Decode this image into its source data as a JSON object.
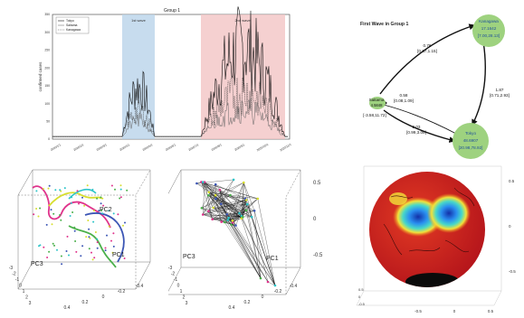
{
  "timeseries": {
    "title": "Group 1",
    "ylabel": "confirmed cases",
    "legend": [
      "Tokyo",
      "Saitama",
      "Kanagawa"
    ],
    "bands": [
      {
        "label": "1st wave",
        "color": "#b9d3ea"
      },
      {
        "label": "2nd wave",
        "color": "#f2c4c4"
      }
    ],
    "yticks": [
      "0",
      "50",
      "100",
      "150",
      "200",
      "250",
      "300",
      "350"
    ],
    "xticks": [
      "2020/1/1",
      "2020/2/1",
      "2020/3/1",
      "2020/4/1",
      "2020/5/1",
      "2020/6/1",
      "2020/7/1",
      "2020/8/1",
      "2020/9/1",
      "2020/10/1",
      "2020/11/1"
    ]
  },
  "network": {
    "title": "First Wave in Group 1",
    "nodes": [
      {
        "id": "kanagawa",
        "name": "Kanagawa",
        "value": "17.1642",
        "interval": "[7.00,28.13]",
        "color": "#9ed27f"
      },
      {
        "id": "saitama",
        "name": "Saitama",
        "value": "4.5848",
        "interval": "[-3.58,11.72]",
        "color": "#9ed27f"
      },
      {
        "id": "tokyo",
        "name": "Tokyo",
        "value": "48.6907",
        "interval": "[20.98,78.92]",
        "color": "#9ed27f"
      }
    ],
    "edges": [
      {
        "label": "0.76",
        "interval": "[0.37,1.15]"
      },
      {
        "label": "0.58",
        "interval": "[0.08,1.09]"
      },
      {
        "label": "1.87",
        "interval": "[0.71,2.93]"
      },
      {
        "label": "2.03",
        "interval": "[0.99,3.08]"
      }
    ]
  },
  "pca_left": {
    "axes": [
      "PC2",
      "PC3",
      "PC1"
    ],
    "ticks_left": [
      "-3",
      "-2",
      "-1",
      "0",
      "1",
      "2",
      "3"
    ],
    "ticks_bottom": [
      "0.4",
      "0.2",
      "0",
      "-0.2",
      "-0.4"
    ]
  },
  "pca_right": {
    "axes": [
      "PC3",
      "PC1"
    ],
    "ticks_right": [
      "0.5",
      "0",
      "-0.5"
    ],
    "ticks_left": [
      "-3",
      "-2",
      "-1",
      "0",
      "1",
      "2",
      "3"
    ],
    "ticks_bottom": [
      "0.4",
      "0.2",
      "0",
      "-0.2",
      "-0.4"
    ]
  },
  "sphere": {
    "ticks_y": [
      "0.5",
      "0",
      "-0.5"
    ],
    "ticks_x": [
      "0.5",
      "0",
      "-0.5"
    ],
    "ticks_left": [
      "-0.5",
      "0",
      "0.5"
    ]
  }
}
